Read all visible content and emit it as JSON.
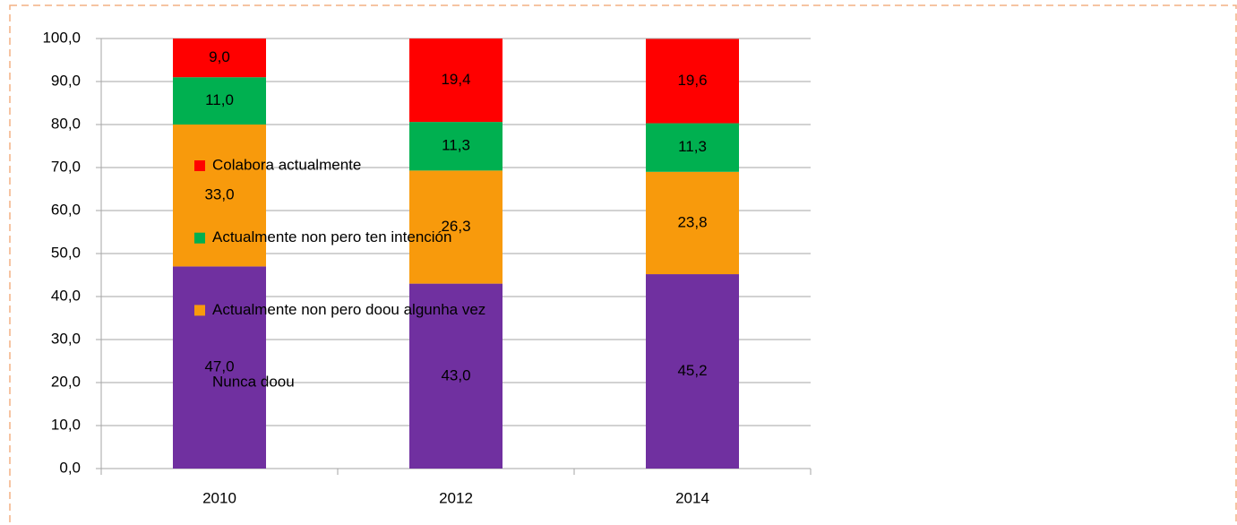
{
  "chart_data": {
    "type": "stacked_bar",
    "categories": [
      "2010",
      "2012",
      "2014"
    ],
    "series": [
      {
        "name": "Nunca doou",
        "color": "#7030a0",
        "values": [
          47.0,
          43.0,
          45.2
        ],
        "value_labels": [
          "47,0",
          "43,0",
          "45,2"
        ]
      },
      {
        "name": "Actualmente non pero doou algunha vez",
        "color": "#f89a0c",
        "values": [
          33.0,
          26.3,
          23.8
        ],
        "value_labels": [
          "33,0",
          "26,3",
          "23,8"
        ]
      },
      {
        "name": "Actualmente non pero ten intención",
        "color": "#00b050",
        "values": [
          11.0,
          11.3,
          11.3
        ],
        "value_labels": [
          "11,0",
          "11,3",
          "11,3"
        ]
      },
      {
        "name": "Colabora actualmente",
        "color": "#ff0000",
        "values": [
          9.0,
          19.4,
          19.6
        ],
        "value_labels": [
          "9,0",
          "19,4",
          "19,6"
        ]
      }
    ],
    "ylim": [
      0,
      100
    ],
    "yticks": [
      {
        "value": 0,
        "label": "0,0"
      },
      {
        "value": 10,
        "label": "10,0"
      },
      {
        "value": 20,
        "label": "20,0"
      },
      {
        "value": 30,
        "label": "30,0"
      },
      {
        "value": 40,
        "label": "40,0"
      },
      {
        "value": 50,
        "label": "50,0"
      },
      {
        "value": 60,
        "label": "60,0"
      },
      {
        "value": 70,
        "label": "70,0"
      },
      {
        "value": 80,
        "label": "80,0"
      },
      {
        "value": 90,
        "label": "90,0"
      },
      {
        "value": 100,
        "label": "100,0"
      }
    ],
    "grid": true,
    "legend": "right"
  }
}
